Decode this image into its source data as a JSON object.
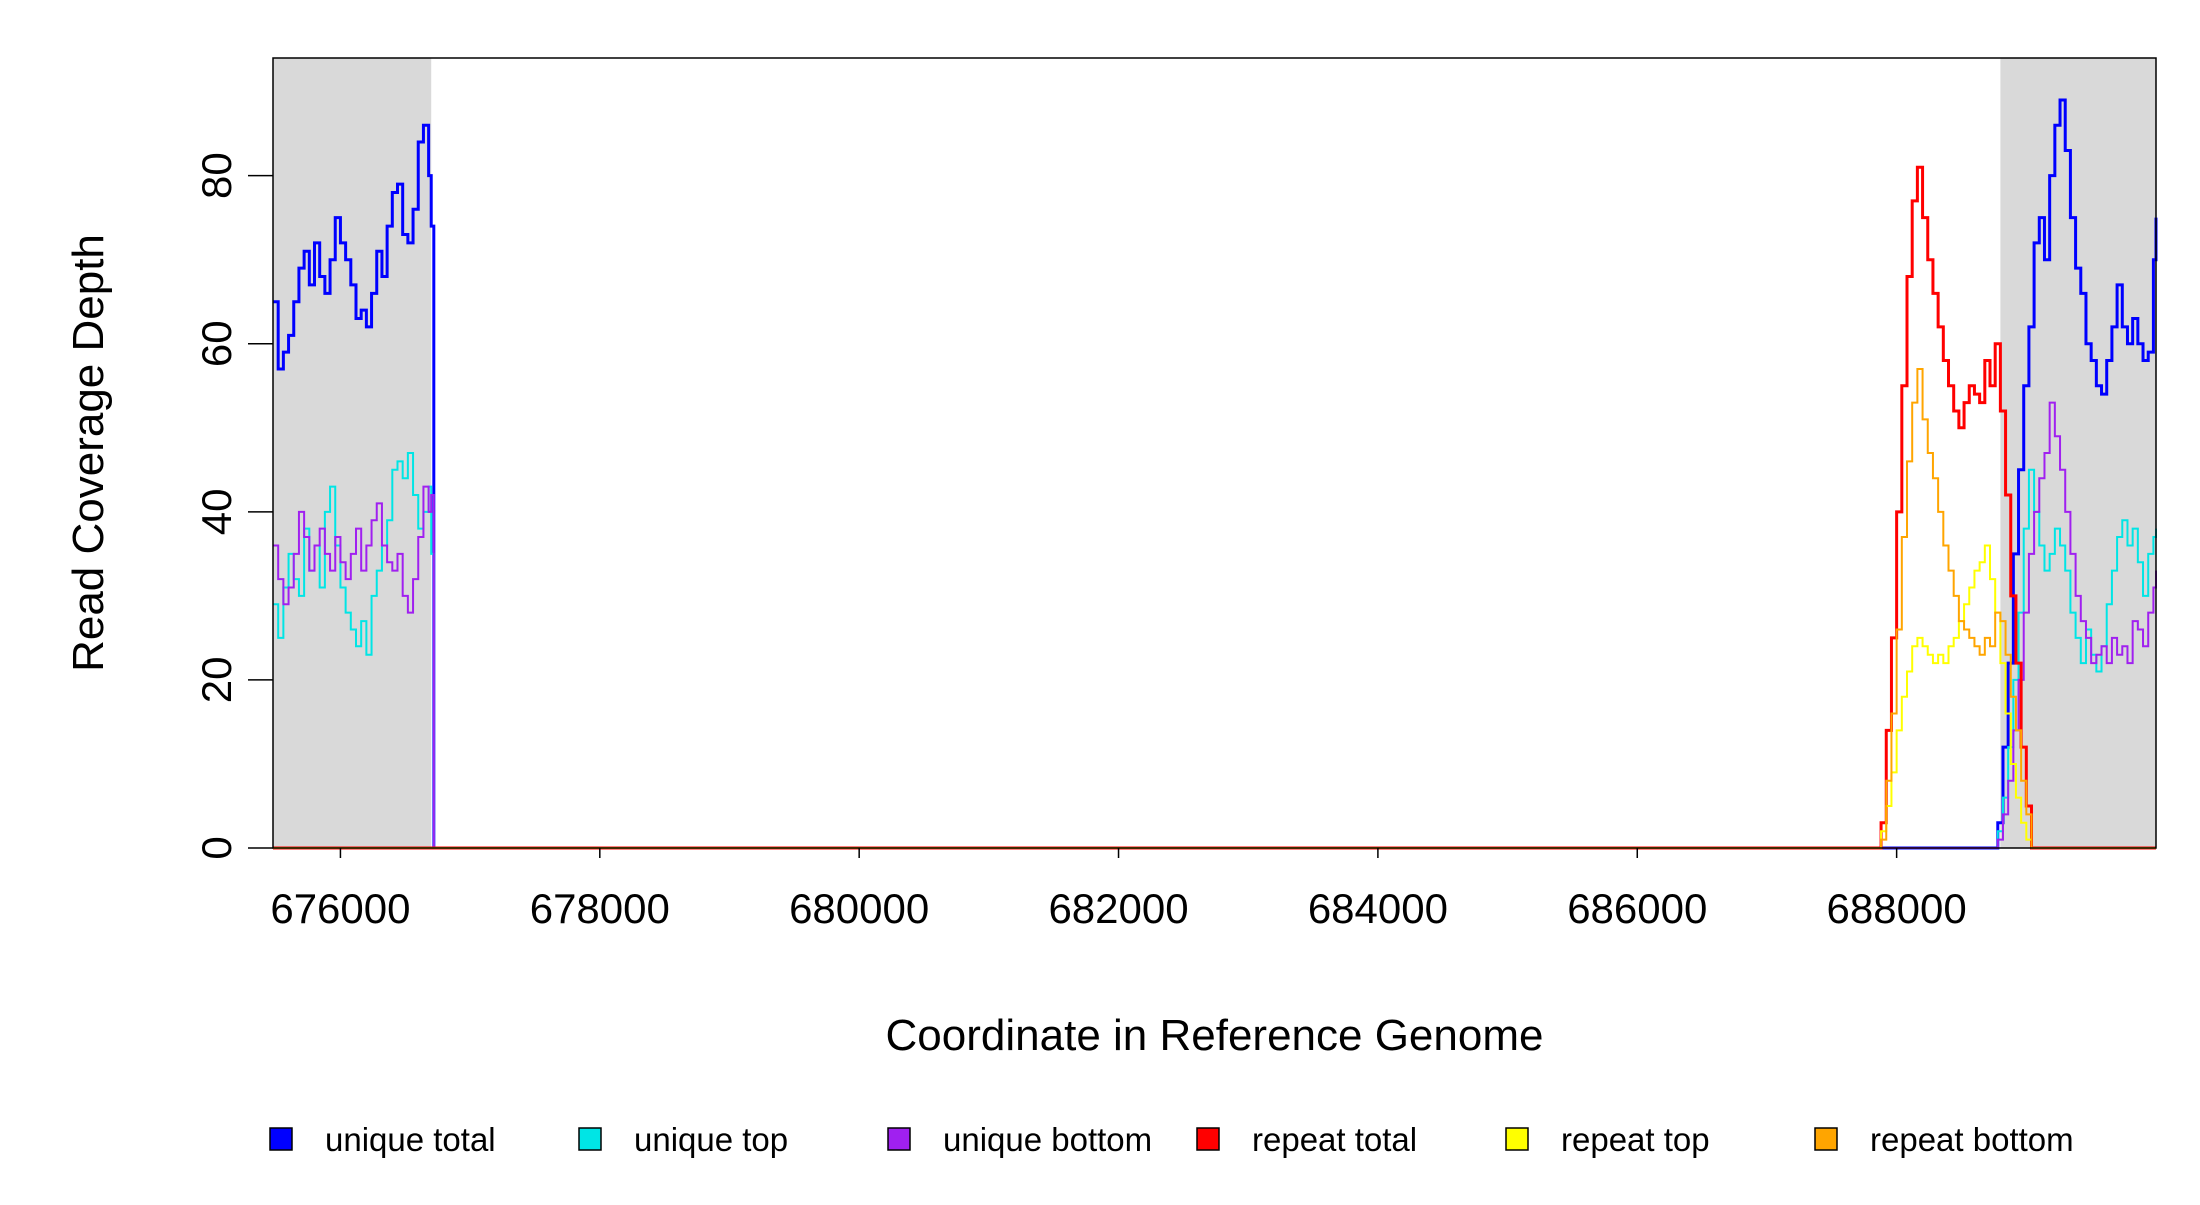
{
  "chart_data": {
    "type": "line",
    "title": "",
    "xlabel": "Coordinate in Reference Genome",
    "ylabel": "Read Coverage Depth",
    "xlim": [
      675480,
      690000
    ],
    "ylim": [
      0,
      94
    ],
    "x_ticks": [
      676000,
      678000,
      680000,
      682000,
      684000,
      686000,
      688000
    ],
    "x_tick_labels": [
      "676000",
      "678000",
      "680000",
      "682000",
      "684000",
      "686000",
      "688000"
    ],
    "y_ticks": [
      0,
      20,
      40,
      60,
      80
    ],
    "y_tick_labels": [
      "0",
      "20",
      "40",
      "60",
      "80"
    ],
    "grid": false,
    "legend_position": "bottom",
    "shaded_regions": [
      {
        "x": [
          675480,
          676700
        ],
        "color": "#d9d9d9"
      },
      {
        "x": [
          688800,
          690000
        ],
        "color": "#d9d9d9"
      }
    ],
    "series": [
      {
        "name": "unique total",
        "color": "#0000ff",
        "width": 3,
        "x": [
          675480,
          675520,
          675560,
          675600,
          675640,
          675680,
          675720,
          675760,
          675800,
          675840,
          675880,
          675920,
          675960,
          676000,
          676040,
          676080,
          676120,
          676160,
          676200,
          676240,
          676280,
          676320,
          676360,
          676400,
          676440,
          676480,
          676520,
          676560,
          676600,
          676640,
          676680,
          676700,
          676720,
          688760,
          688780,
          688820,
          688860,
          688900,
          688940,
          688980,
          689020,
          689060,
          689100,
          689140,
          689180,
          689220,
          689260,
          689300,
          689340,
          689380,
          689420,
          689460,
          689500,
          689540,
          689580,
          689620,
          689660,
          689700,
          689740,
          689780,
          689820,
          689860,
          689900,
          689940,
          689980,
          690000
        ],
        "y": [
          65,
          57,
          59,
          61,
          65,
          69,
          71,
          67,
          72,
          68,
          66,
          70,
          75,
          72,
          70,
          67,
          63,
          64,
          62,
          66,
          71,
          68,
          74,
          78,
          79,
          73,
          72,
          76,
          84,
          86,
          80,
          74,
          0,
          0,
          3,
          12,
          22,
          35,
          45,
          55,
          62,
          72,
          75,
          70,
          80,
          86,
          89,
          83,
          75,
          69,
          66,
          60,
          58,
          55,
          54,
          58,
          62,
          67,
          62,
          60,
          63,
          60,
          58,
          59,
          70,
          75
        ]
      },
      {
        "name": "unique top",
        "color": "#00e5e5",
        "width": 2,
        "x": [
          675480,
          675520,
          675560,
          675600,
          675640,
          675680,
          675720,
          675760,
          675800,
          675840,
          675880,
          675920,
          675960,
          676000,
          676040,
          676080,
          676120,
          676160,
          676200,
          676240,
          676280,
          676320,
          676360,
          676400,
          676440,
          676480,
          676520,
          676560,
          676600,
          676640,
          676680,
          676700,
          676720,
          688760,
          688780,
          688820,
          688860,
          688900,
          688940,
          688980,
          689020,
          689060,
          689100,
          689140,
          689180,
          689220,
          689260,
          689300,
          689340,
          689380,
          689420,
          689460,
          689500,
          689540,
          689580,
          689620,
          689660,
          689700,
          689740,
          689780,
          689820,
          689860,
          689900,
          689940,
          689980,
          690000
        ],
        "y": [
          29,
          25,
          31,
          35,
          32,
          30,
          38,
          33,
          36,
          31,
          40,
          43,
          36,
          31,
          28,
          26,
          24,
          27,
          23,
          30,
          33,
          36,
          39,
          45,
          46,
          44,
          47,
          42,
          38,
          40,
          43,
          35,
          0,
          0,
          2,
          6,
          12,
          20,
          28,
          38,
          45,
          40,
          36,
          33,
          35,
          38,
          36,
          33,
          28,
          25,
          22,
          26,
          23,
          21,
          24,
          29,
          33,
          37,
          39,
          36,
          38,
          34,
          30,
          35,
          37,
          38
        ]
      },
      {
        "name": "unique bottom",
        "color": "#a020f0",
        "width": 2,
        "x": [
          675480,
          675520,
          675560,
          675600,
          675640,
          675680,
          675720,
          675760,
          675800,
          675840,
          675880,
          675920,
          675960,
          676000,
          676040,
          676080,
          676120,
          676160,
          676200,
          676240,
          676280,
          676320,
          676360,
          676400,
          676440,
          676480,
          676520,
          676560,
          676600,
          676640,
          676680,
          676700,
          676720,
          688760,
          688780,
          688820,
          688860,
          688900,
          688940,
          688980,
          689020,
          689060,
          689100,
          689140,
          689180,
          689220,
          689260,
          689300,
          689340,
          689380,
          689420,
          689460,
          689500,
          689540,
          689580,
          689620,
          689660,
          689700,
          689740,
          689780,
          689820,
          689860,
          689900,
          689940,
          689980,
          690000
        ],
        "y": [
          36,
          32,
          29,
          31,
          35,
          40,
          37,
          33,
          36,
          38,
          35,
          33,
          37,
          34,
          32,
          35,
          38,
          33,
          36,
          39,
          41,
          36,
          34,
          33,
          35,
          30,
          28,
          32,
          37,
          43,
          40,
          42,
          0,
          0,
          1,
          4,
          8,
          14,
          20,
          28,
          35,
          40,
          44,
          47,
          53,
          49,
          45,
          40,
          35,
          30,
          27,
          25,
          22,
          23,
          24,
          22,
          25,
          23,
          24,
          22,
          27,
          26,
          24,
          28,
          31,
          33
        ]
      },
      {
        "name": "repeat total",
        "color": "#ff0000",
        "width": 3,
        "x": [
          675480,
          687850,
          687880,
          687920,
          687960,
          688000,
          688040,
          688080,
          688120,
          688160,
          688200,
          688240,
          688280,
          688320,
          688360,
          688400,
          688440,
          688480,
          688520,
          688560,
          688600,
          688640,
          688680,
          688720,
          688760,
          688800,
          688840,
          688880,
          688920,
          688960,
          689000,
          689040,
          689080,
          690000
        ],
        "y": [
          0,
          0,
          3,
          14,
          25,
          40,
          55,
          68,
          77,
          81,
          75,
          70,
          66,
          62,
          58,
          55,
          52,
          50,
          53,
          55,
          54,
          53,
          58,
          55,
          60,
          52,
          42,
          30,
          22,
          12,
          5,
          0,
          0,
          0
        ]
      },
      {
        "name": "repeat top",
        "color": "#ffff00",
        "width": 2,
        "x": [
          675480,
          687850,
          687880,
          687920,
          687960,
          688000,
          688040,
          688080,
          688120,
          688160,
          688200,
          688240,
          688280,
          688320,
          688360,
          688400,
          688440,
          688480,
          688520,
          688560,
          688600,
          688640,
          688680,
          688720,
          688760,
          688800,
          688840,
          688880,
          688920,
          688960,
          689000,
          689040,
          689080,
          690000
        ],
        "y": [
          0,
          0,
          2,
          5,
          9,
          14,
          18,
          21,
          24,
          25,
          24,
          23,
          22,
          23,
          22,
          24,
          25,
          27,
          29,
          31,
          33,
          34,
          36,
          32,
          28,
          22,
          16,
          10,
          6,
          3,
          1,
          0,
          0,
          0
        ]
      },
      {
        "name": "repeat bottom",
        "color": "#ffa500",
        "width": 2,
        "x": [
          675480,
          687850,
          687880,
          687920,
          687960,
          688000,
          688040,
          688080,
          688120,
          688160,
          688200,
          688240,
          688280,
          688320,
          688360,
          688400,
          688440,
          688480,
          688520,
          688560,
          688600,
          688640,
          688680,
          688720,
          688760,
          688800,
          688840,
          688880,
          688920,
          688960,
          689000,
          689040,
          689080,
          690000
        ],
        "y": [
          0,
          0,
          1,
          8,
          16,
          26,
          37,
          46,
          53,
          57,
          51,
          47,
          44,
          40,
          36,
          33,
          30,
          27,
          26,
          25,
          24,
          23,
          25,
          24,
          28,
          27,
          23,
          18,
          14,
          8,
          4,
          0,
          0,
          0
        ]
      }
    ]
  }
}
